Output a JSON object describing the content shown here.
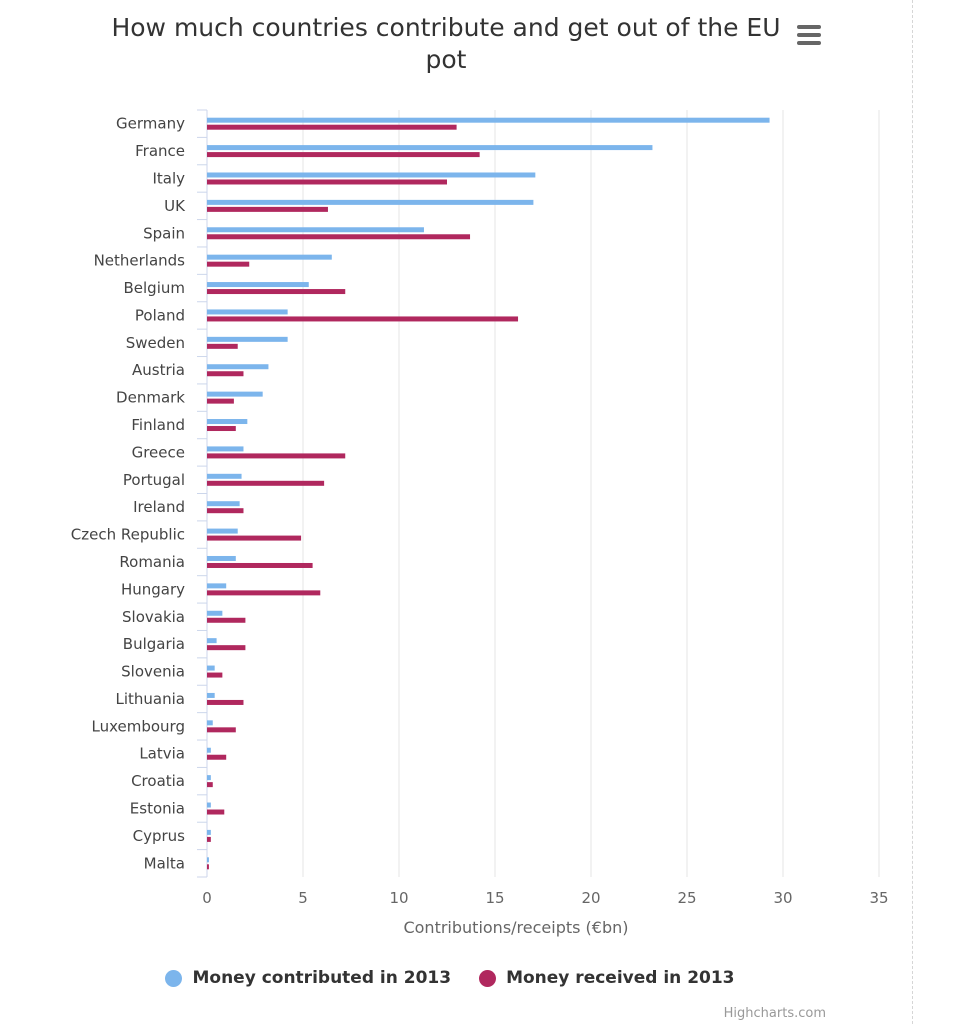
{
  "chart_data": {
    "type": "bar",
    "orientation": "horizontal",
    "title": "How much countries contribute and get out of the EU pot",
    "xlabel": "Contributions/receipts (€bn)",
    "ylabel": "",
    "xlim": [
      0,
      35
    ],
    "xticks": [
      "0",
      "5",
      "10",
      "15",
      "20",
      "25",
      "30",
      "35"
    ],
    "xtick_values": [
      0,
      5,
      10,
      15,
      20,
      25,
      30,
      35
    ],
    "grid": true,
    "legend_position": "bottom-center",
    "categories": [
      "Germany",
      "France",
      "Italy",
      "UK",
      "Spain",
      "Netherlands",
      "Belgium",
      "Poland",
      "Sweden",
      "Austria",
      "Denmark",
      "Finland",
      "Greece",
      "Portugal",
      "Ireland",
      "Czech Republic",
      "Romania",
      "Hungary",
      "Slovakia",
      "Bulgaria",
      "Slovenia",
      "Lithuania",
      "Luxembourg",
      "Latvia",
      "Croatia",
      "Estonia",
      "Cyprus",
      "Malta"
    ],
    "series": [
      {
        "name": "Money contributed in 2013",
        "color": "#7cb5ec",
        "values": [
          29.3,
          23.2,
          17.1,
          17.0,
          11.3,
          6.5,
          5.3,
          4.2,
          4.2,
          3.2,
          2.9,
          2.1,
          1.9,
          1.8,
          1.7,
          1.6,
          1.5,
          1.0,
          0.8,
          0.5,
          0.4,
          0.4,
          0.3,
          0.2,
          0.2,
          0.2,
          0.2,
          0.1
        ]
      },
      {
        "name": "Money received in 2013",
        "color": "#b0285e",
        "values": [
          13.0,
          14.2,
          12.5,
          6.3,
          13.7,
          2.2,
          7.2,
          16.2,
          1.6,
          1.9,
          1.4,
          1.5,
          7.2,
          6.1,
          1.9,
          4.9,
          5.5,
          5.9,
          2.0,
          2.0,
          0.8,
          1.9,
          1.5,
          1.0,
          0.3,
          0.9,
          0.2,
          0.1
        ]
      }
    ]
  },
  "toolbar": {
    "menu_icon": "hamburger-menu-icon"
  },
  "credits": "Highcharts.com"
}
